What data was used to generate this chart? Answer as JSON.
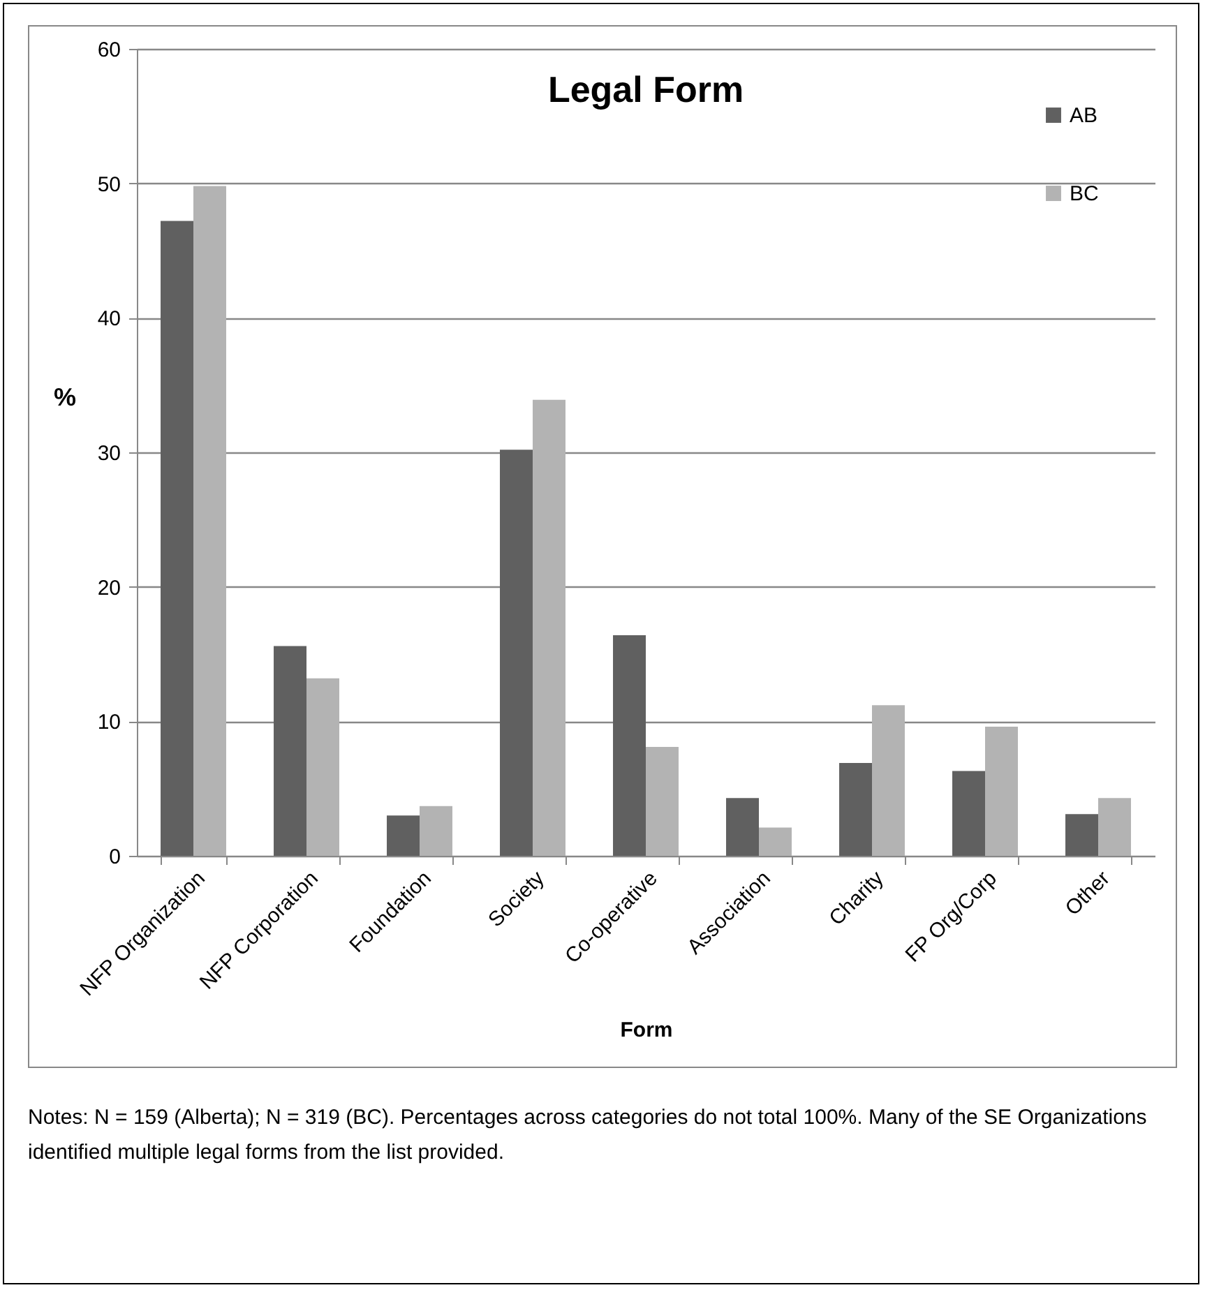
{
  "chart_data": {
    "type": "bar",
    "title": "Legal Form",
    "xlabel": "Form",
    "ylabel": "%",
    "categories": [
      "NFP Organization",
      "NFP Corporation",
      "Foundation",
      "Society",
      "Co-operative",
      "Association",
      "Charity",
      "FP Org/Corp",
      "Other"
    ],
    "series": [
      {
        "name": "AB",
        "color": "#606060",
        "values": [
          47.2,
          15.6,
          3.0,
          30.2,
          16.4,
          4.3,
          6.9,
          6.3,
          3.1
        ]
      },
      {
        "name": "BC",
        "color": "#b3b3b3",
        "values": [
          49.8,
          13.2,
          3.7,
          33.9,
          8.1,
          2.1,
          11.2,
          9.6,
          4.3
        ]
      }
    ],
    "ylim": [
      0,
      60
    ],
    "yticks": [
      0,
      10,
      20,
      30,
      40,
      50,
      60
    ],
    "grid": "y",
    "legend": "top right",
    "annotations": [
      "Notes: N = 159 (Alberta); N = 319 (BC). Percentages across categories do not total 100%. Many of the SE Organizations identified multiple legal forms from the list provided."
    ]
  }
}
